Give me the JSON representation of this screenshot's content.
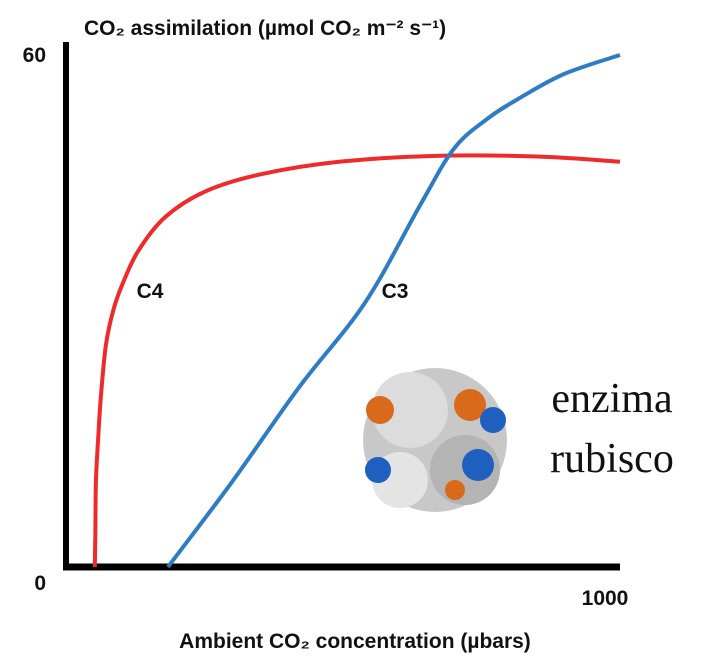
{
  "chart_data": {
    "type": "line",
    "y_label": "CO₂ assimilation (µmol CO₂ m⁻² s⁻¹)",
    "x_label": "Ambient CO₂ concentration (µbars)",
    "xlim": [
      0,
      1000
    ],
    "ylim": [
      0,
      60
    ],
    "xticks": [
      1000
    ],
    "yticks": [
      0,
      60
    ],
    "series": [
      {
        "name": "C4",
        "color": "#ee2a2a",
        "x": [
          52,
          53,
          54,
          58,
          63,
          72,
          85,
          101,
          130,
          179,
          251,
          350,
          495,
          675,
          850,
          1000
        ],
        "values": [
          0,
          4,
          10,
          15,
          20,
          26,
          30,
          33,
          37,
          41,
          44,
          46,
          47.5,
          48.2,
          48.1,
          47.5
        ]
      },
      {
        "name": "C3",
        "color": "#2e7bc6",
        "x": [
          184,
          300,
          420,
          540,
          640,
          700,
          760,
          820,
          900,
          1000
        ],
        "values": [
          0,
          10,
          21,
          31,
          42.5,
          49,
          52.5,
          55,
          57.8,
          60
        ]
      }
    ],
    "annotation": [
      "enzima",
      "rubisco"
    ]
  }
}
